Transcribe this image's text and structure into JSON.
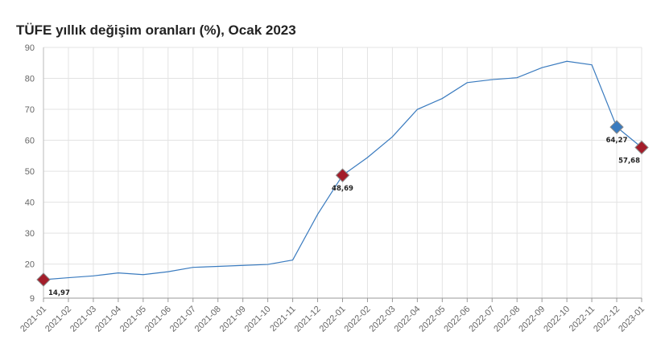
{
  "chart_data": {
    "type": "line",
    "title": "TÜFE yıllık değişim oranları (%), Ocak 2023",
    "xlabel": "",
    "ylabel": "",
    "ylim": [
      9,
      90
    ],
    "y_ticks": [
      9,
      20,
      30,
      40,
      50,
      60,
      70,
      80,
      90
    ],
    "grid": true,
    "categories": [
      "2021-01",
      "2021-02",
      "2021-03",
      "2021-04",
      "2021-05",
      "2021-06",
      "2021-07",
      "2021-08",
      "2021-09",
      "2021-10",
      "2021-11",
      "2021-12",
      "2022-01",
      "2022-02",
      "2022-03",
      "2022-04",
      "2022-05",
      "2022-06",
      "2022-07",
      "2022-08",
      "2022-09",
      "2022-10",
      "2022-11",
      "2022-12",
      "2023-01"
    ],
    "series": [
      {
        "color": "#3a7bbf",
        "values": [
          14.97,
          15.61,
          16.19,
          17.14,
          16.59,
          17.53,
          18.95,
          19.25,
          19.58,
          19.89,
          21.31,
          36.08,
          48.69,
          54.44,
          61.14,
          69.97,
          73.5,
          78.62,
          79.6,
          80.21,
          83.45,
          85.51,
          84.39,
          64.27,
          57.68
        ]
      }
    ],
    "markers": [
      {
        "index": 0,
        "label": "14,97",
        "color": "#a31d2a"
      },
      {
        "index": 12,
        "label": "48,69",
        "color": "#a31d2a"
      },
      {
        "index": 23,
        "label": "64,27",
        "color": "#3a7bbf"
      },
      {
        "index": 24,
        "label": "57,68",
        "color": "#a31d2a"
      }
    ]
  }
}
